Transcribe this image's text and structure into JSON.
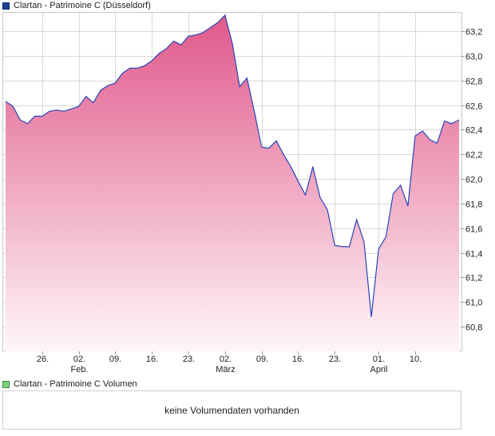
{
  "legend": {
    "price_label": "Clartan - Patrimoine C (Düsseldorf)",
    "volume_label": "Clartan - Patrimoine C Volumen"
  },
  "volume_panel": {
    "message": "keine Volumendaten vorhanden"
  },
  "colors": {
    "line": "#2a45b8",
    "fill_top": "#e0588a",
    "fill_bottom": "#fff6f9",
    "grid": "#d8d8d8",
    "price_legend": "#1c3f93",
    "volume_legend": "#7bd07b"
  },
  "chart_data": {
    "type": "area",
    "title": "",
    "ylim": [
      60.6,
      63.35
    ],
    "y_ticks": [
      "63,2",
      "63,0",
      "62,8",
      "62,6",
      "62,4",
      "62,2",
      "62,0",
      "61,8",
      "61,6",
      "61,4",
      "61,2",
      "61,0",
      "60,8"
    ],
    "y_tick_values": [
      63.2,
      63.0,
      62.8,
      62.6,
      62.4,
      62.2,
      62.0,
      61.8,
      61.6,
      61.4,
      61.2,
      61.0,
      60.8
    ],
    "x_ticks": [
      {
        "day": "26.",
        "month": "",
        "index": 5
      },
      {
        "day": "02.",
        "month": "Feb.",
        "index": 10
      },
      {
        "day": "09.",
        "month": "",
        "index": 15
      },
      {
        "day": "16.",
        "month": "",
        "index": 20
      },
      {
        "day": "23.",
        "month": "",
        "index": 25
      },
      {
        "day": "02.",
        "month": "März",
        "index": 30
      },
      {
        "day": "09.",
        "month": "",
        "index": 35
      },
      {
        "day": "16.",
        "month": "",
        "index": 40
      },
      {
        "day": "23.",
        "month": "",
        "index": 45
      },
      {
        "day": "01.",
        "month": "April",
        "index": 51
      },
      {
        "day": "10.",
        "month": "",
        "index": 56
      }
    ],
    "series": [
      {
        "values": [
          62.63,
          62.59,
          62.48,
          62.45,
          62.51,
          62.51,
          62.55,
          62.56,
          62.55,
          62.57,
          62.59,
          62.67,
          62.62,
          62.72,
          62.76,
          62.78,
          62.86,
          62.9,
          62.9,
          62.92,
          62.96,
          63.02,
          63.06,
          63.12,
          63.09,
          63.16,
          63.17,
          63.19,
          63.23,
          63.27,
          63.33,
          63.1,
          62.75,
          62.82,
          62.55,
          62.26,
          62.25,
          62.31,
          62.2,
          62.1,
          61.98,
          61.87,
          62.1,
          61.85,
          61.75,
          61.46,
          61.45,
          61.45,
          61.67,
          61.49,
          60.88,
          61.43,
          61.53,
          61.88,
          61.95,
          61.78,
          62.35,
          62.39,
          62.32,
          62.29,
          62.47,
          62.45,
          62.48
        ]
      }
    ]
  }
}
